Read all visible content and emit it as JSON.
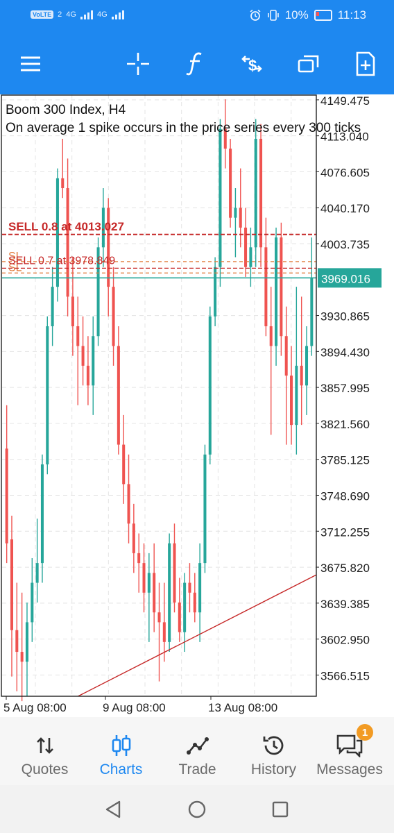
{
  "status_bar": {
    "volte": "VoLTE",
    "sim": "2",
    "net1": "4G",
    "net2": "4G",
    "battery_text": "10%",
    "time": "11:13"
  },
  "toolbar": {
    "icons": [
      "menu-icon",
      "crosshair-icon",
      "function-icon",
      "trade-dollar-icon",
      "windows-icon",
      "new-document-icon"
    ]
  },
  "chart": {
    "title_line1": "Boom 300 Index, H4",
    "title_line2": "On average 1 spike occurs in the price series every 300 ticks",
    "current_price": "3969.016",
    "sell1_label": "SELL 0.8 at 4013.027",
    "sell2_label": "SELL 0.7 at 3978.849",
    "sl1_label": "SL",
    "sl2_label": "SL",
    "colors": {
      "bull": "#26a69a",
      "bear": "#ef5350",
      "order_line": "#c62828",
      "price_line": "#26a69a",
      "grid": "#e4e4e4"
    }
  },
  "chart_data": {
    "type": "candlestick",
    "symbol": "Boom 300 Index",
    "timeframe": "H4",
    "y_ticks": [
      "4149.475",
      "4113.040",
      "4076.605",
      "4040.170",
      "4003.735",
      "3930.865",
      "3894.430",
      "3857.995",
      "3821.560",
      "3785.125",
      "3748.690",
      "3712.255",
      "3675.820",
      "3639.385",
      "3602.950",
      "3566.515"
    ],
    "ylim": [
      3545,
      4155
    ],
    "x_ticks": [
      "5 Aug 08:00",
      "9 Aug 08:00",
      "13 Aug 08:00"
    ],
    "current_price": 3969.016,
    "orders": [
      {
        "label": "SELL 0.8 at 4013.027",
        "price": 4013.027
      },
      {
        "label": "SELL 0.7 at 3978.849",
        "price": 3978.849
      }
    ],
    "stop_losses": [
      3985.5,
      3974.0
    ],
    "candles": [
      {
        "o": 3796,
        "h": 3840,
        "l": 3680,
        "c": 3700
      },
      {
        "o": 3704,
        "h": 3728,
        "l": 3565,
        "c": 3612
      },
      {
        "o": 3612,
        "h": 3660,
        "l": 3550,
        "c": 3590
      },
      {
        "o": 3590,
        "h": 3650,
        "l": 3540,
        "c": 3580
      },
      {
        "o": 3580,
        "h": 3640,
        "l": 3545,
        "c": 3620
      },
      {
        "o": 3620,
        "h": 3685,
        "l": 3600,
        "c": 3660
      },
      {
        "o": 3660,
        "h": 3725,
        "l": 3640,
        "c": 3680
      },
      {
        "o": 3680,
        "h": 3790,
        "l": 3660,
        "c": 3780
      },
      {
        "o": 3780,
        "h": 3930,
        "l": 3770,
        "c": 3920
      },
      {
        "o": 3920,
        "h": 3980,
        "l": 3900,
        "c": 3960
      },
      {
        "o": 3960,
        "h": 4080,
        "l": 3945,
        "c": 4070
      },
      {
        "o": 4070,
        "h": 4110,
        "l": 4050,
        "c": 4060
      },
      {
        "o": 4060,
        "h": 4090,
        "l": 3930,
        "c": 3950
      },
      {
        "o": 3950,
        "h": 3990,
        "l": 3890,
        "c": 3920
      },
      {
        "o": 3920,
        "h": 3950,
        "l": 3840,
        "c": 3900
      },
      {
        "o": 3900,
        "h": 3930,
        "l": 3860,
        "c": 3880
      },
      {
        "o": 3880,
        "h": 3910,
        "l": 3840,
        "c": 3860
      },
      {
        "o": 3860,
        "h": 3930,
        "l": 3830,
        "c": 3910
      },
      {
        "o": 3910,
        "h": 4010,
        "l": 3900,
        "c": 4000
      },
      {
        "o": 4000,
        "h": 4060,
        "l": 3980,
        "c": 4040
      },
      {
        "o": 4040,
        "h": 4050,
        "l": 3930,
        "c": 3960
      },
      {
        "o": 3960,
        "h": 3980,
        "l": 3880,
        "c": 3900
      },
      {
        "o": 3900,
        "h": 3920,
        "l": 3790,
        "c": 3800
      },
      {
        "o": 3800,
        "h": 3830,
        "l": 3740,
        "c": 3760
      },
      {
        "o": 3760,
        "h": 3790,
        "l": 3700,
        "c": 3720
      },
      {
        "o": 3720,
        "h": 3740,
        "l": 3670,
        "c": 3690
      },
      {
        "o": 3690,
        "h": 3710,
        "l": 3650,
        "c": 3680
      },
      {
        "o": 3680,
        "h": 3700,
        "l": 3630,
        "c": 3650
      },
      {
        "o": 3650,
        "h": 3690,
        "l": 3600,
        "c": 3670
      },
      {
        "o": 3670,
        "h": 3700,
        "l": 3610,
        "c": 3630
      },
      {
        "o": 3630,
        "h": 3660,
        "l": 3560,
        "c": 3620
      },
      {
        "o": 3620,
        "h": 3660,
        "l": 3580,
        "c": 3600
      },
      {
        "o": 3600,
        "h": 3710,
        "l": 3590,
        "c": 3700
      },
      {
        "o": 3700,
        "h": 3720,
        "l": 3630,
        "c": 3640
      },
      {
        "o": 3640,
        "h": 3665,
        "l": 3600,
        "c": 3610
      },
      {
        "o": 3610,
        "h": 3670,
        "l": 3590,
        "c": 3660
      },
      {
        "o": 3660,
        "h": 3680,
        "l": 3630,
        "c": 3650
      },
      {
        "o": 3650,
        "h": 3670,
        "l": 3620,
        "c": 3630
      },
      {
        "o": 3630,
        "h": 3700,
        "l": 3600,
        "c": 3680
      },
      {
        "o": 3680,
        "h": 3800,
        "l": 3670,
        "c": 3790
      },
      {
        "o": 3790,
        "h": 3940,
        "l": 3780,
        "c": 3930
      },
      {
        "o": 3930,
        "h": 3990,
        "l": 3920,
        "c": 3980
      },
      {
        "o": 3980,
        "h": 4130,
        "l": 3960,
        "c": 4120
      },
      {
        "o": 4120,
        "h": 4150,
        "l": 4080,
        "c": 4100
      },
      {
        "o": 4100,
        "h": 4110,
        "l": 4020,
        "c": 4030
      },
      {
        "o": 4030,
        "h": 4060,
        "l": 3990,
        "c": 4040
      },
      {
        "o": 4040,
        "h": 4080,
        "l": 4000,
        "c": 4020
      },
      {
        "o": 4020,
        "h": 4040,
        "l": 3970,
        "c": 3980
      },
      {
        "o": 3980,
        "h": 4020,
        "l": 3960,
        "c": 4000
      },
      {
        "o": 4000,
        "h": 4130,
        "l": 3980,
        "c": 4110
      },
      {
        "o": 4110,
        "h": 4125,
        "l": 3980,
        "c": 4000
      },
      {
        "o": 4000,
        "h": 4030,
        "l": 3910,
        "c": 3920
      },
      {
        "o": 3920,
        "h": 3960,
        "l": 3810,
        "c": 3900
      },
      {
        "o": 3900,
        "h": 4020,
        "l": 3880,
        "c": 4010
      },
      {
        "o": 4010,
        "h": 4025,
        "l": 3890,
        "c": 3910
      },
      {
        "o": 3910,
        "h": 3940,
        "l": 3800,
        "c": 3870
      },
      {
        "o": 3870,
        "h": 3900,
        "l": 3800,
        "c": 3820
      },
      {
        "o": 3820,
        "h": 3960,
        "l": 3790,
        "c": 3880
      },
      {
        "o": 3880,
        "h": 3950,
        "l": 3820,
        "c": 3860
      },
      {
        "o": 3860,
        "h": 3920,
        "l": 3830,
        "c": 3900
      },
      {
        "o": 3900,
        "h": 4010,
        "l": 3890,
        "c": 3969
      }
    ]
  },
  "nav": {
    "items": [
      {
        "label": "Quotes"
      },
      {
        "label": "Charts"
      },
      {
        "label": "Trade"
      },
      {
        "label": "History"
      },
      {
        "label": "Messages"
      }
    ],
    "messages_badge": "1"
  }
}
